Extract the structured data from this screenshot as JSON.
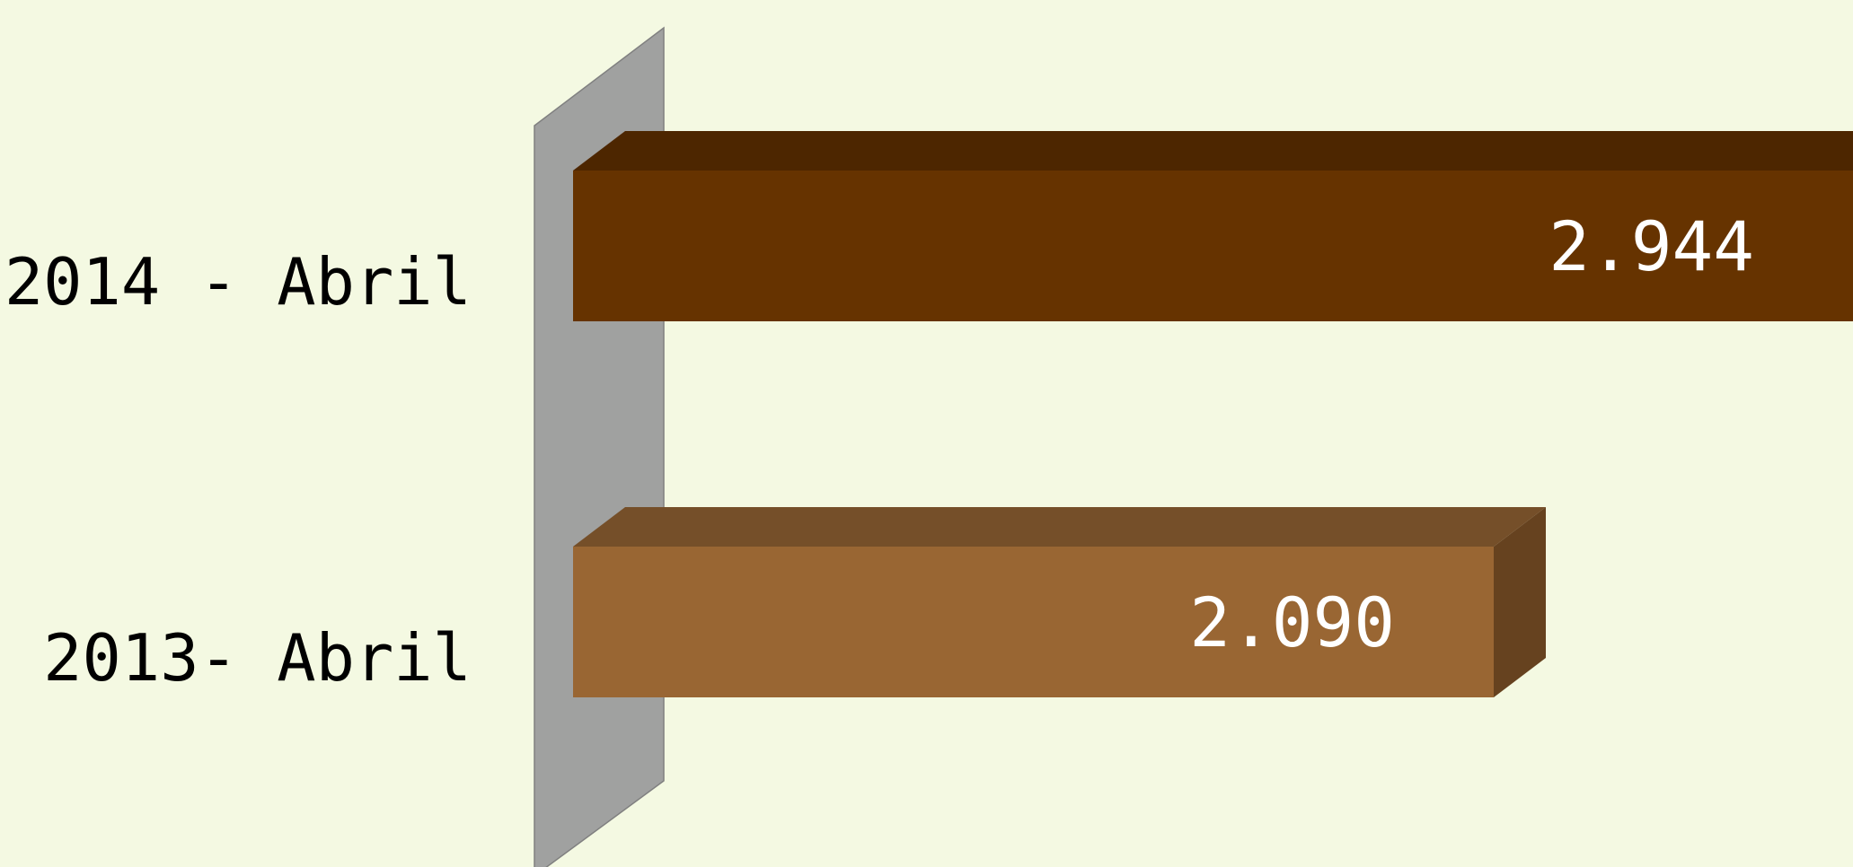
{
  "chart_data": {
    "type": "bar",
    "orientation": "horizontal",
    "style": "3d",
    "categories": [
      "2014 - Abril",
      "2013- Abril"
    ],
    "values": [
      2944,
      2090
    ],
    "value_labels": [
      "2.944",
      "2.090"
    ],
    "xlim": [
      0,
      2900
    ],
    "colors": {
      "2014 - Abril": {
        "front": "#663300",
        "top": "#4d2600",
        "side": "#4d2600"
      },
      "2013- Abril": {
        "front": "#996633",
        "top": "#754f29",
        "side": "#66421f"
      }
    },
    "axis_wall_color": "#a0a1a0",
    "background": "#f4f9e2",
    "grid": false,
    "legend": "none",
    "title": "",
    "xlabel": "",
    "ylabel": ""
  }
}
